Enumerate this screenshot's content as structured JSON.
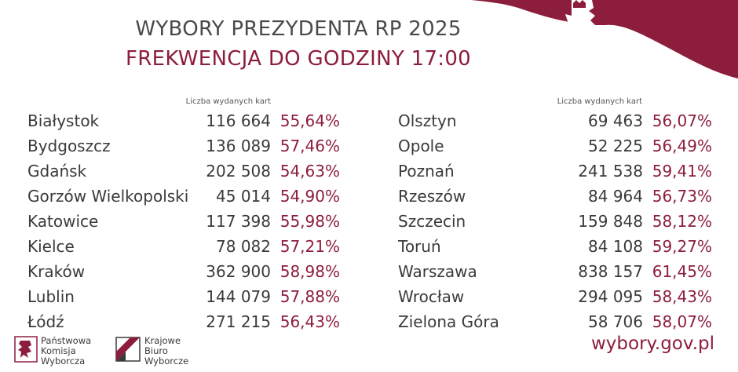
{
  "header": {
    "title": "WYBORY PREZYDENTA RP 2025",
    "subtitle": "FREKWENCJA DO GODZINY 17:00"
  },
  "column_header": "Liczba wydanych kart",
  "rows_left": [
    {
      "city": "Białystok",
      "cards": "116 664",
      "pct": "55,64%"
    },
    {
      "city": "Bydgoszcz",
      "cards": "136 089",
      "pct": "57,46%"
    },
    {
      "city": "Gdańsk",
      "cards": "202 508",
      "pct": "54,63%"
    },
    {
      "city": "Gorzów Wielkopolski",
      "cards": "45 014",
      "pct": "54,90%"
    },
    {
      "city": "Katowice",
      "cards": "117 398",
      "pct": "55,98%"
    },
    {
      "city": "Kielce",
      "cards": "78 082",
      "pct": "57,21%"
    },
    {
      "city": "Kraków",
      "cards": "362 900",
      "pct": "58,98%"
    },
    {
      "city": "Lublin",
      "cards": "144 079",
      "pct": "57,88%"
    },
    {
      "city": "Łódź",
      "cards": "271 215",
      "pct": "56,43%"
    }
  ],
  "rows_right": [
    {
      "city": "Olsztyn",
      "cards": "69 463",
      "pct": "56,07%"
    },
    {
      "city": "Opole",
      "cards": "52 225",
      "pct": "56,49%"
    },
    {
      "city": "Poznań",
      "cards": "241 538",
      "pct": "59,41%"
    },
    {
      "city": "Rzeszów",
      "cards": "84 964",
      "pct": "56,73%"
    },
    {
      "city": "Szczecin",
      "cards": "159 848",
      "pct": "58,12%"
    },
    {
      "city": "Toruń",
      "cards": "84 108",
      "pct": "59,27%"
    },
    {
      "city": "Warszawa",
      "cards": "838 157",
      "pct": "61,45%"
    },
    {
      "city": "Wrocław",
      "cards": "294 095",
      "pct": "58,43%"
    },
    {
      "city": "Zielona Góra",
      "cards": "58 706",
      "pct": "58,07%"
    }
  ],
  "footer": {
    "pkw_line1": "Państwowa",
    "pkw_line2": "Komisja",
    "pkw_line3": "Wyborcza",
    "kbw_line1": "Krajowe",
    "kbw_line2": "Biuro",
    "kbw_line3": "Wyborcze",
    "website": "wybory.gov.pl"
  },
  "colors": {
    "accent": "#8d1d3c",
    "text": "#3a3a3a"
  },
  "icons": [
    "eagle-emblem-icon",
    "pkw-logo-icon",
    "kbw-logo-icon"
  ]
}
